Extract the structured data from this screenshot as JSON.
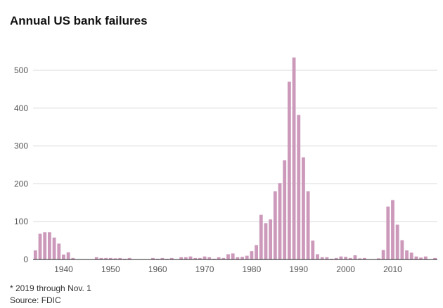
{
  "title": "Annual US bank failures",
  "footnote": "* 2019 through Nov. 1",
  "source": "Source: FDIC",
  "colors": {
    "bar": "#cc99bb",
    "grid": "#d9d9d9",
    "axis": "#222222",
    "text": "#555555"
  },
  "chart_data": {
    "type": "bar",
    "title": "Annual US bank failures",
    "xlabel": "",
    "ylabel": "",
    "ylim": [
      0,
      540
    ],
    "yticks": [
      0,
      100,
      200,
      300,
      400,
      500
    ],
    "xticks": [
      1940,
      1950,
      1960,
      1970,
      1980,
      1990,
      2000,
      2010
    ],
    "grid": true,
    "x": [
      1934,
      1935,
      1936,
      1937,
      1938,
      1939,
      1940,
      1941,
      1942,
      1943,
      1944,
      1945,
      1946,
      1947,
      1948,
      1949,
      1950,
      1951,
      1952,
      1953,
      1954,
      1955,
      1956,
      1957,
      1958,
      1959,
      1960,
      1961,
      1962,
      1963,
      1964,
      1965,
      1966,
      1967,
      1968,
      1969,
      1970,
      1971,
      1972,
      1973,
      1974,
      1975,
      1976,
      1977,
      1978,
      1979,
      1980,
      1981,
      1982,
      1983,
      1984,
      1985,
      1986,
      1987,
      1988,
      1989,
      1990,
      1991,
      1992,
      1993,
      1994,
      1995,
      1996,
      1997,
      1998,
      1999,
      2000,
      2001,
      2002,
      2003,
      2004,
      2005,
      2006,
      2007,
      2008,
      2009,
      2010,
      2011,
      2012,
      2013,
      2014,
      2015,
      2016,
      2017,
      2018,
      2019
    ],
    "values": [
      24,
      68,
      72,
      72,
      58,
      42,
      13,
      19,
      4,
      0,
      0,
      0,
      0,
      6,
      4,
      4,
      4,
      3,
      4,
      2,
      4,
      0,
      0,
      0,
      0,
      4,
      2,
      4,
      2,
      4,
      0,
      6,
      6,
      8,
      4,
      4,
      8,
      6,
      2,
      6,
      4,
      14,
      16,
      6,
      7,
      10,
      22,
      38,
      118,
      96,
      106,
      180,
      202,
      262,
      470,
      534,
      382,
      270,
      180,
      50,
      14,
      6,
      6,
      2,
      4,
      8,
      7,
      4,
      11,
      3,
      4,
      0,
      0,
      3,
      25,
      140,
      157,
      92,
      51,
      24,
      18,
      8,
      5,
      8,
      0,
      4
    ]
  }
}
